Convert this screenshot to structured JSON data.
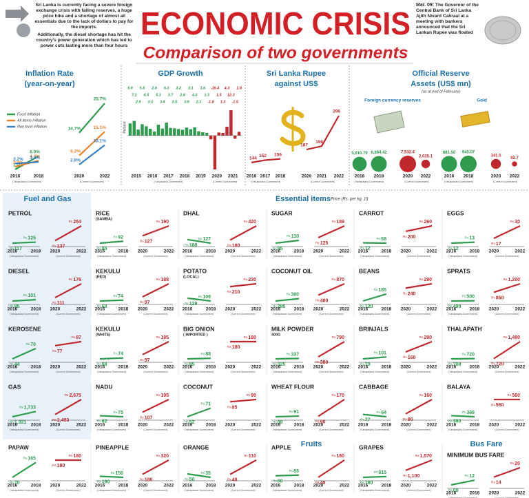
{
  "header": {
    "title": "ECONOMIC CRISIS",
    "subtitle": "Comparison of two governments",
    "intro": [
      "Sri Lanka is currently facing a severe foreign exchange crisis with falling reserves, a huge price hike and a shortage of almost all essentials due to the lack of dollars to pay for the imports.",
      "Additionally, the diesel shortage has hit the country's power generation which has led to power cuts lasting more than four hours"
    ],
    "note_date": "Mar. 09:",
    "note": "The Governor of the Central Bank of Sri Lanka Ajith Nivard Cabraal at a meeting with bankers announced that the Sri Lankan Rupee was floated"
  },
  "governments": [
    "(Yahapalana Government)",
    "(Current Government)"
  ],
  "chart_data": [
    {
      "type": "line",
      "title": "Inflation Rate",
      "subtitle": "(year-on-year)",
      "categories": [
        "2016",
        "2018",
        "2020",
        "2022"
      ],
      "series": [
        {
          "name": "Food Inflation",
          "color": "#2e9b4f",
          "values": [
            1.0,
            6.0,
            14.7,
            25.7
          ],
          "value_labels": [
            "1.0%",
            "6.0%",
            "14.7%",
            "25.7%"
          ]
        },
        {
          "name": "All items Inflation",
          "color": "#e8842b",
          "values": [
            2.0,
            4.3,
            6.2,
            15.1
          ],
          "value_labels": [
            "2.0%",
            "4.3%",
            "6.2%",
            "15.1%"
          ]
        },
        {
          "name": "Non food Inflation",
          "color": "#3a7fc1",
          "values": [
            3.2,
            3.8,
            2.8,
            10.1
          ],
          "value_labels": [
            "3.2%",
            "3.8%",
            "2.8%",
            "10.1%"
          ]
        }
      ]
    },
    {
      "type": "bar",
      "title": "GDP Growth",
      "ylabel": "Percent",
      "categories": [
        "2015",
        "2016",
        "2017",
        "2018",
        "2019",
        "2020",
        "2021"
      ],
      "colors": [
        "#2e9b4f",
        "#2e9b4f",
        "#2e9b4f",
        "#2e9b4f",
        "#2e9b4f",
        "#c0282e",
        "#c0282e"
      ],
      "values": [
        [
          5.9,
          7.1,
          2.9,
          5.5
        ],
        [
          4.5,
          3.3,
          2.0,
          5.3
        ],
        [
          3.4,
          6.3,
          3.7,
          3.5
        ],
        [
          3.2,
          2.8,
          3.9,
          3.1
        ],
        [
          4.0,
          2.1,
          1.6,
          1.3
        ],
        [
          -1.8,
          -16.4,
          1.5,
          1.3
        ],
        [
          4.3,
          12.3,
          -1.5,
          1.8
        ]
      ],
      "value_labels": [
        [
          "5.9",
          "7.1",
          "2.9",
          "5.5"
        ],
        [
          "4.5",
          "3.3",
          "2.0",
          "5.3"
        ],
        [
          "3.4",
          "6.3",
          "3.7",
          "3.5"
        ],
        [
          "3.2",
          "2.8",
          "3.9",
          "3.1"
        ],
        [
          "4.0",
          "2.1",
          "1.6",
          "1.3"
        ],
        [
          "-1.8",
          "-16.4",
          "1.5",
          "1.3"
        ],
        [
          "4.3",
          "12.3",
          "-1.5",
          "1.8"
        ]
      ]
    },
    {
      "type": "line",
      "title": "Sri Lanka Rupee",
      "subtitle": "against US$",
      "categories": [
        "2016",
        "2017",
        "2018",
        "2020",
        "2021",
        "2022"
      ],
      "values": [
        144,
        152,
        156,
        187,
        198,
        298
      ],
      "color": "#c0282e"
    },
    {
      "type": "bubble",
      "title": "Official Reserve",
      "subtitle": "Assets (US$ mn)",
      "note": "(as at end of February)",
      "categories": [
        "2016",
        "2018",
        "2020",
        "2022"
      ],
      "colors": [
        "#2e9b4f",
        "#2e9b4f",
        "#c0282e",
        "#c0282e"
      ],
      "series": [
        {
          "name": "Foreign currency reserves",
          "values": [
            5610.79,
            6894.42,
            7532.4,
            2025.1
          ],
          "value_labels": [
            "5,610.79",
            "6,894.42",
            "7,532.4",
            "2,025.1"
          ]
        },
        {
          "name": "Gold",
          "values": [
            881.5,
            945.07,
            341.5,
            92.7
          ],
          "value_labels": [
            "881.50",
            "945.07",
            "341.5",
            "92.7"
          ]
        }
      ]
    }
  ],
  "items": {
    "type": "slope",
    "years": [
      "2016",
      "2018",
      "2020",
      "2022"
    ],
    "prefix": "Rs.",
    "colors": [
      "#2e9b4f",
      "#c0282e"
    ],
    "groups": [
      {
        "title": "Fuel and Gas",
        "items": [
          {
            "name": "PETROL",
            "values": [
              117,
              125,
              137,
              254
            ]
          },
          {
            "name": "DIESEL",
            "values": [
              95,
              101,
              111,
              176
            ]
          },
          {
            "name": "KEROSENE",
            "values": [
              44,
              70,
              77,
              87
            ]
          },
          {
            "name": "GAS",
            "values": [
              1321,
              1733,
              1493,
              2675
            ],
            "value_labels": [
              "1,321",
              "1,733",
              "1,493",
              "2,675"
            ]
          }
        ]
      },
      {
        "title": "Essential items",
        "note": "Price (Rs. per kg. 1l)",
        "items": [
          {
            "name": "RICE",
            "sub": "(SAMBA)",
            "values": [
              80,
              92,
              127,
              190
            ]
          },
          {
            "name": "DHAL",
            "values": [
              188,
              127,
              180,
              420
            ]
          },
          {
            "name": "SUGAR",
            "values": [
              95,
              110,
              125,
              189
            ]
          },
          {
            "name": "CARROT",
            "values": [
              72,
              68,
              200,
              260
            ]
          },
          {
            "name": "EGGS",
            "values": [
              12,
              13,
              17,
              30
            ]
          },
          {
            "name": "KEKULU",
            "sub": "(RED)",
            "values": [
              68,
              74,
              97,
              188
            ]
          },
          {
            "name": "POTATO",
            "sub": "(LOCAL)",
            "values": [
              129,
              109,
              210,
              230
            ]
          },
          {
            "name": "COCONUT OIL",
            "values": [
              280,
              360,
              480,
              870
            ]
          },
          {
            "name": "BEANS",
            "values": [
              120,
              185,
              240,
              280
            ]
          },
          {
            "name": "SPRATS",
            "values": [
              490,
              500,
              850,
              1200
            ],
            "value_labels": [
              "490",
              "500",
              "850",
              "1,200"
            ]
          },
          {
            "name": "KEKULU",
            "sub": "(WHITE)",
            "values": [
              68,
              74,
              97,
              185
            ]
          },
          {
            "name": "BIG ONION",
            "sub": "( IMPORTED )",
            "values": [
              85,
              88,
              180,
              180
            ]
          },
          {
            "name": "MILK POWDER",
            "sub": "400G",
            "values": [
              325,
              337,
              380,
              790
            ]
          },
          {
            "name": "BRINJALS",
            "values": [
              79,
              101,
              160,
              280
            ]
          },
          {
            "name": "THALAPATH",
            "values": [
              708,
              720,
              720,
              1480
            ],
            "value_labels": [
              "708",
              "720",
              "720",
              "1,480"
            ]
          },
          {
            "name": "NADU",
            "values": [
              82,
              75,
              107,
              195
            ]
          },
          {
            "name": "COCONUT",
            "values": [
              52,
              71,
              85,
              90
            ]
          },
          {
            "name": "WHEAT FLOUR",
            "values": [
              88,
              91,
              90,
              170
            ]
          },
          {
            "name": "CABBAGE",
            "values": [
              77,
              64,
              80,
              160
            ]
          },
          {
            "name": "BALAYA",
            "values": [
              380,
              368,
              560,
              560
            ]
          }
        ]
      },
      {
        "title": "Fruits",
        "items": [
          {
            "name": "PAPAW",
            "values": [
              70,
              165,
              180,
              180
            ]
          },
          {
            "name": "PINEAPPLE",
            "values": [
              160,
              150,
              180,
              320
            ]
          },
          {
            "name": "ORANGE",
            "values": [
              50,
              35,
              48,
              110
            ]
          },
          {
            "name": "APPLE",
            "values": [
              60,
              65,
              48,
              180
            ]
          },
          {
            "name": "GRAPES",
            "values": [
              780,
              815,
              1100,
              1570
            ],
            "value_labels": [
              "780",
              "815",
              "1,100",
              "1,570"
            ]
          }
        ]
      },
      {
        "title": "Bus Fare",
        "items": [
          {
            "name": "MINIMUM BUS FARE",
            "values": [
              9,
              12,
              14,
              20
            ],
            "value_labels": [
              "09",
              "12",
              "14",
              "20"
            ]
          }
        ]
      }
    ]
  }
}
